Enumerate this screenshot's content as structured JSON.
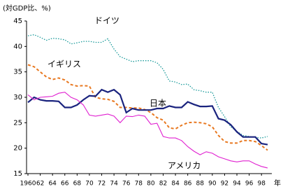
{
  "chart_data": {
    "type": "line",
    "y_axis_label": "(対GDP比、%)",
    "x_axis_label": "年",
    "x": [
      1960,
      1961,
      1962,
      1963,
      1964,
      1965,
      1966,
      1967,
      1968,
      1969,
      1970,
      1971,
      1972,
      1973,
      1974,
      1975,
      1976,
      1977,
      1978,
      1979,
      1980,
      1981,
      1982,
      1983,
      1984,
      1985,
      1986,
      1987,
      1988,
      1989,
      1990,
      1991,
      1992,
      1993,
      1994,
      1995,
      1996,
      1997,
      1998,
      1999
    ],
    "xlim": [
      1960,
      1999
    ],
    "xticks": [
      1960,
      {
        "value": 1962,
        "label": "62"
      },
      {
        "value": 1964,
        "label": "64"
      },
      {
        "value": 1966,
        "label": "66"
      },
      {
        "value": 1968,
        "label": "68"
      },
      {
        "value": 1970,
        "label": "70"
      },
      {
        "value": 1972,
        "label": "72"
      },
      {
        "value": 1974,
        "label": "74"
      },
      {
        "value": 1976,
        "label": "76"
      },
      {
        "value": 1978,
        "label": "78"
      },
      {
        "value": 1980,
        "label": "80"
      },
      {
        "value": 1982,
        "label": "82"
      },
      {
        "value": 1984,
        "label": "84"
      },
      {
        "value": 1986,
        "label": "86"
      },
      {
        "value": 1988,
        "label": "88"
      },
      {
        "value": 1990,
        "label": "90"
      },
      {
        "value": 1992,
        "label": "92"
      },
      {
        "value": 1994,
        "label": "94"
      },
      {
        "value": 1996,
        "label": "96"
      },
      {
        "value": 1998,
        "label": "98"
      }
    ],
    "ylim": [
      15,
      45
    ],
    "yticks": [
      15,
      20,
      25,
      30,
      35,
      40,
      45
    ],
    "grid": false,
    "series": [
      {
        "name": "ドイツ",
        "color": "#1a9a9a",
        "style": "dotted",
        "values": [
          42.1,
          42.3,
          41.8,
          41.2,
          41.6,
          41.5,
          41.3,
          40.5,
          40.7,
          41,
          41,
          40.8,
          40.8,
          41.5,
          39.5,
          38,
          37.5,
          37,
          37.2,
          37.2,
          37.2,
          36.8,
          35.5,
          33.2,
          33,
          32.5,
          32.6,
          31.5,
          31.3,
          31,
          31,
          28,
          26.2,
          24.2,
          23.3,
          22.5,
          22.3,
          22.1,
          22,
          22.3
        ]
      },
      {
        "name": "イギリス",
        "color": "#e87820",
        "style": "dashed",
        "values": [
          36.4,
          36,
          35,
          34,
          33.5,
          33.8,
          33.4,
          32.5,
          32.2,
          32.3,
          32.2,
          30,
          29.7,
          29.6,
          29.2,
          28,
          28,
          27.9,
          27.9,
          27.6,
          27,
          26,
          25.5,
          24,
          23.8,
          24.5,
          25,
          25.1,
          25,
          24.8,
          24.2,
          22.5,
          21.3,
          21,
          21,
          21.5,
          21.5,
          21.3,
          20.5,
          19.6
        ]
      },
      {
        "name": "日本",
        "color": "#1a237e",
        "style": "thick",
        "values": [
          29,
          30,
          29.5,
          29.3,
          29.3,
          29.2,
          28,
          28,
          28.5,
          29.5,
          30.3,
          30.2,
          31.5,
          31,
          31.5,
          30.5,
          27,
          27.8,
          27.5,
          27.5,
          27.5,
          27.8,
          27.8,
          28.3,
          28,
          28,
          29.1,
          28.6,
          28.2,
          28.2,
          28.3,
          25.8,
          25.5,
          24.6,
          23.2,
          22.2,
          22.2,
          22.2,
          20.9,
          20.7
        ]
      },
      {
        "name": "アメリカ",
        "color": "#e020d0",
        "style": "solid",
        "values": [
          30.5,
          29.5,
          30,
          30.1,
          30.2,
          30.8,
          31,
          30,
          29.5,
          28.5,
          26.5,
          26.3,
          26.5,
          26.7,
          26.3,
          25,
          26.3,
          26.2,
          26.5,
          26.3,
          24.7,
          24.9,
          22.3,
          22,
          22,
          21.5,
          20.3,
          19.4,
          18.7,
          19.3,
          19,
          18.3,
          17.9,
          17.5,
          17.3,
          17.5,
          17.5,
          16.9,
          16.4,
          16.1
        ]
      }
    ]
  }
}
